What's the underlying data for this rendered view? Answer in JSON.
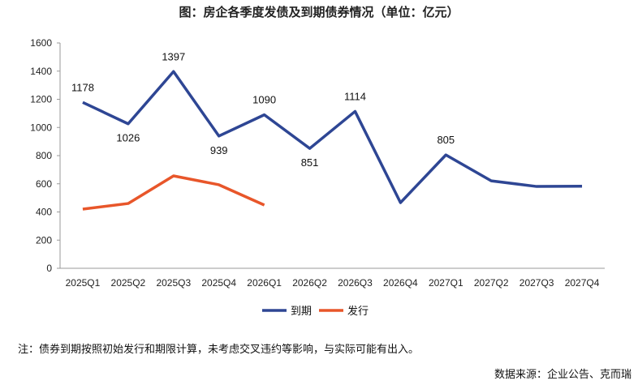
{
  "chart_data": {
    "type": "line",
    "title": "图：房企各季度发债及到期债券情况（单位：亿元）",
    "categories": [
      "2025Q1",
      "2025Q2",
      "2025Q3",
      "2025Q4",
      "2026Q1",
      "2026Q2",
      "2026Q3",
      "2026Q4",
      "2027Q1",
      "2027Q2",
      "2027Q3",
      "2027Q4"
    ],
    "series": [
      {
        "name": "到期",
        "color": "#2E4694",
        "values": [
          1178,
          1026,
          1397,
          939,
          1090,
          851,
          1114,
          466,
          805,
          621,
          581,
          583
        ],
        "labels": [
          "1178",
          "1026",
          "1397",
          "939",
          "1090",
          "851",
          "1114",
          null,
          "805",
          null,
          null,
          null
        ]
      },
      {
        "name": "发行",
        "color": "#E8562A",
        "values": [
          420,
          460,
          656,
          593,
          449,
          null,
          null,
          null,
          null,
          null,
          null,
          null
        ]
      }
    ],
    "ylim": [
      0,
      1600
    ],
    "yticks": [
      0,
      200,
      400,
      600,
      800,
      1000,
      1200,
      1400,
      1600
    ],
    "grid": false,
    "legend": "bottom"
  },
  "note": "注：债券到期按照初始发行和期限计算，未考虑交叉违约等影响，与实际可能有出入。",
  "source": "数据来源：企业公告、克而瑞"
}
